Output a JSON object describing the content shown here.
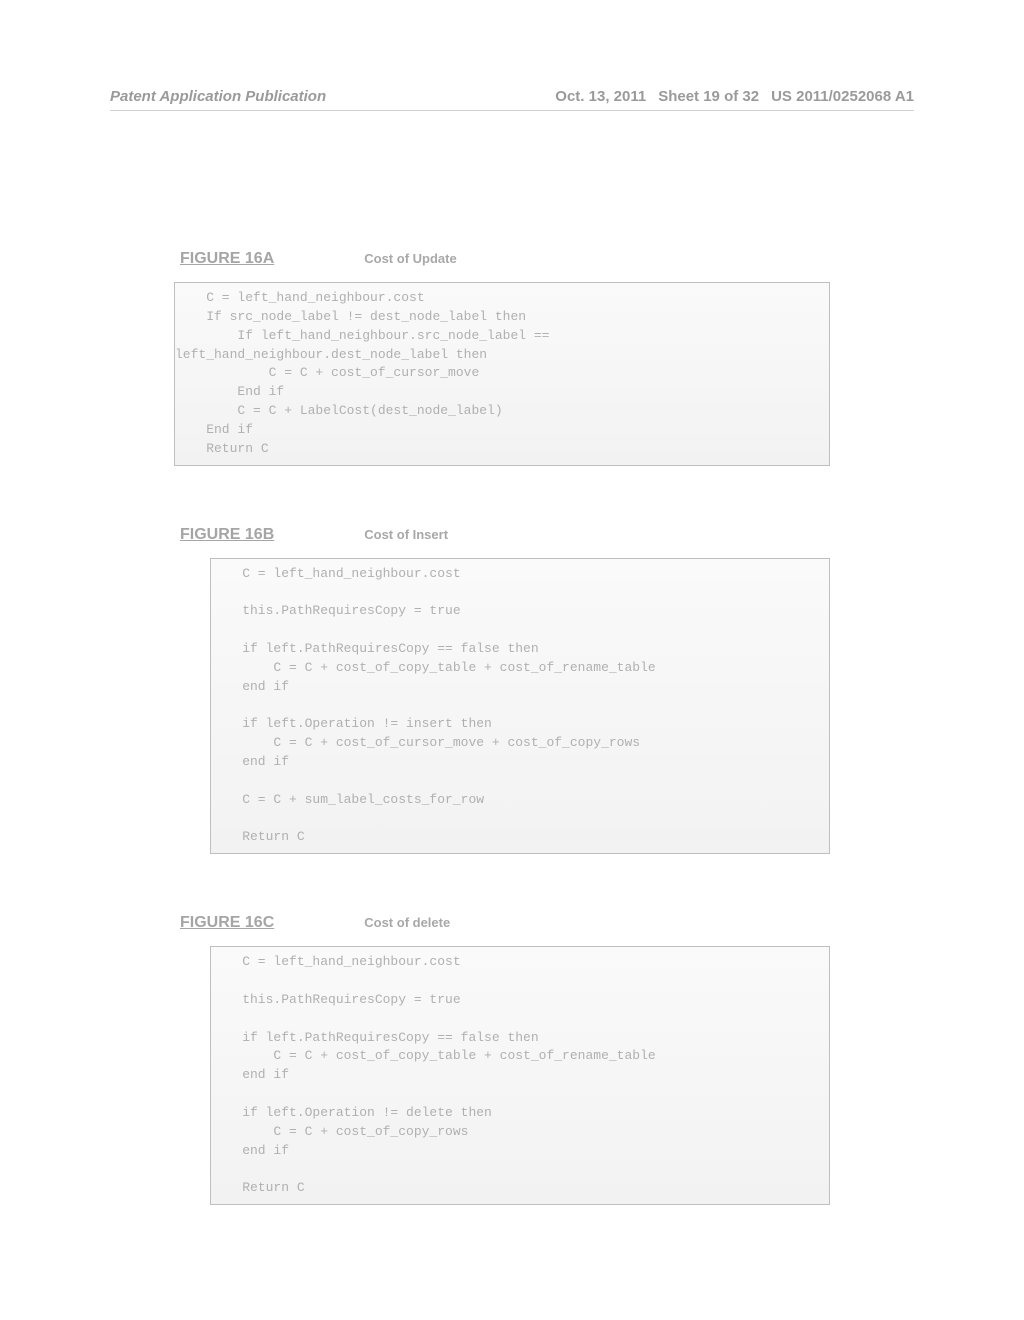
{
  "header": {
    "left": "Patent Application Publication",
    "date": "Oct. 13, 2011",
    "sheet": "Sheet 19 of 32",
    "pubno": "US 2011/0252068 A1"
  },
  "figures": [
    {
      "label": "FIGURE 16A",
      "caption": "Cost of Update",
      "box_class": "code-box",
      "code": "    C = left_hand_neighbour.cost\n    If src_node_label != dest_node_label then\n        If left_hand_neighbour.src_node_label ==\nleft_hand_neighbour.dest_node_label then\n            C = C + cost_of_cursor_move\n        End if\n        C = C + LabelCost(dest_node_label)\n    End if\n    Return C"
    },
    {
      "label": "FIGURE 16B",
      "caption": "Cost of Insert",
      "box_class": "code-box code-box-b",
      "code": "    C = left_hand_neighbour.cost\n\n    this.PathRequiresCopy = true\n\n    if left.PathRequiresCopy == false then\n        C = C + cost_of_copy_table + cost_of_rename_table\n    end if\n\n    if left.Operation != insert then\n        C = C + cost_of_cursor_move + cost_of_copy_rows\n    end if\n\n    C = C + sum_label_costs_for_row\n\n    Return C"
    },
    {
      "label": "FIGURE 16C",
      "caption": "Cost of delete",
      "box_class": "code-box code-box-c",
      "code": "    C = left_hand_neighbour.cost\n\n    this.PathRequiresCopy = true\n\n    if left.PathRequiresCopy == false then\n        C = C + cost_of_copy_table + cost_of_rename_table\n    end if\n\n    if left.Operation != delete then\n        C = C + cost_of_copy_rows\n    end if\n\n    Return C"
    }
  ]
}
